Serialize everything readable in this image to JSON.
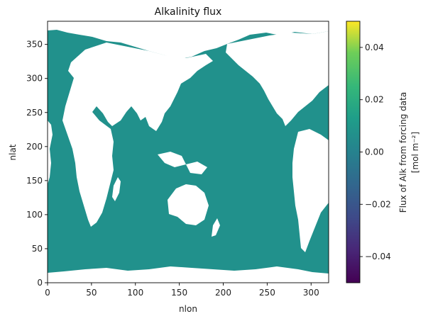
{
  "chart_data": {
    "type": "heatmap",
    "title": "Alkalinity flux",
    "xlabel": "nlon",
    "ylabel": "nlat",
    "xlim": [
      0,
      320
    ],
    "ylim": [
      0,
      384
    ],
    "xticks": [
      "0",
      "50",
      "100",
      "150",
      "200",
      "250",
      "300"
    ],
    "yticks": [
      "0",
      "50",
      "100",
      "150",
      "200",
      "250",
      "300",
      "350"
    ],
    "field_value": 0.0,
    "field_color": "#21918c",
    "land_color": "#ffffff",
    "colorbar": {
      "label_line1": "Flux of Alk from forcing data",
      "label_line2": "[mol m⁻²]",
      "min": -0.05,
      "max": 0.05,
      "ticks": [
        "−0.04",
        "−0.02",
        "0.00",
        "0.02",
        "0.04"
      ],
      "colormap": "viridis"
    }
  }
}
